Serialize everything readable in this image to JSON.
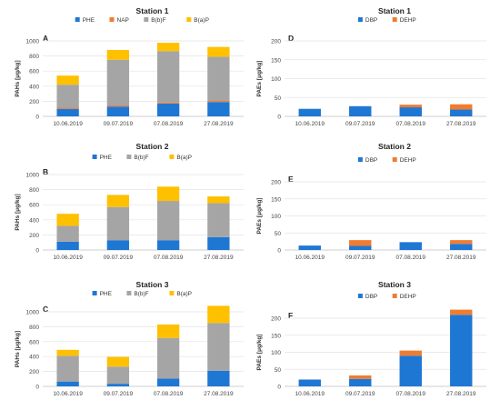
{
  "colors": {
    "PHE": "#1f77d4",
    "NAP": "#ef7d31",
    "BbF": "#a5a5a5",
    "BaP": "#ffc000",
    "DBP": "#1f77d4",
    "DEHP": "#ef7d31"
  },
  "chart_data": [
    {
      "type": "bar",
      "stacked": true,
      "panel": "A",
      "title": "Station 1",
      "ylabel": "PAHs [μg/kg]",
      "ylim": [
        0,
        1000
      ],
      "yticks": [
        0,
        200,
        400,
        600,
        800,
        1000
      ],
      "categories": [
        "10.06.2019",
        "09.07.2019",
        "07.08.2019",
        "27.08.2019"
      ],
      "legend": [
        "PHE",
        "NAP",
        "B(b)F",
        "B(a)P"
      ],
      "series": [
        {
          "name": "PHE",
          "key": "PHE",
          "values": [
            100,
            130,
            170,
            190
          ]
        },
        {
          "name": "NAP",
          "key": "NAP",
          "values": [
            15,
            15,
            15,
            15
          ]
        },
        {
          "name": "B(b)F",
          "key": "BbF",
          "values": [
            305,
            605,
            680,
            585
          ]
        },
        {
          "name": "B(a)P",
          "key": "BaP",
          "values": [
            120,
            130,
            110,
            130
          ]
        }
      ]
    },
    {
      "type": "bar",
      "stacked": true,
      "panel": "D",
      "title": "Station 1",
      "ylabel": "PAEs [μg/kg]",
      "ylim": [
        0,
        200
      ],
      "yticks": [
        0,
        50,
        100,
        150,
        200
      ],
      "categories": [
        "10.06.2019",
        "09.07.2019",
        "07.08.2019",
        "27.08.2019"
      ],
      "legend": [
        "DBP",
        "DEHP"
      ],
      "series": [
        {
          "name": "DBP",
          "key": "DBP",
          "values": [
            20,
            27,
            24,
            18
          ]
        },
        {
          "name": "DEHP",
          "key": "DEHP",
          "values": [
            0,
            0,
            7,
            14
          ]
        }
      ]
    },
    {
      "type": "bar",
      "stacked": true,
      "panel": "B",
      "title": "Station 2",
      "ylabel": "PAHs [μg/kg]",
      "ylim": [
        0,
        1000
      ],
      "yticks": [
        0,
        200,
        400,
        600,
        800,
        1000
      ],
      "categories": [
        "10.06.2019",
        "09.07.2019",
        "07.08.2019",
        "27.08.2019"
      ],
      "legend": [
        "PHE",
        "B(b)F",
        "B(a)P"
      ],
      "series": [
        {
          "name": "PHE",
          "key": "PHE",
          "values": [
            110,
            130,
            130,
            170
          ]
        },
        {
          "name": "B(b)F",
          "key": "BbF",
          "values": [
            210,
            440,
            520,
            450
          ]
        },
        {
          "name": "B(a)P",
          "key": "BaP",
          "values": [
            160,
            160,
            190,
            90
          ]
        }
      ]
    },
    {
      "type": "bar",
      "stacked": true,
      "panel": "E",
      "title": "Station 2",
      "ylabel": "PAEs [μg/kg]",
      "ylim": [
        0,
        200
      ],
      "yticks": [
        0,
        50,
        100,
        150,
        200
      ],
      "categories": [
        "10.06.2019",
        "09.07.2019",
        "07.08.2019",
        "27.08.2019"
      ],
      "legend": [
        "DBP",
        "DEHP"
      ],
      "series": [
        {
          "name": "DBP",
          "key": "DBP",
          "values": [
            13,
            12,
            23,
            18
          ]
        },
        {
          "name": "DEHP",
          "key": "DEHP",
          "values": [
            0,
            17,
            0,
            11
          ]
        }
      ]
    },
    {
      "type": "bar",
      "stacked": true,
      "panel": "C",
      "title": "Station 3",
      "ylabel": "PAHs [μg/kg]",
      "ylim": [
        0,
        1000
      ],
      "yticks": [
        0,
        200,
        400,
        600,
        800,
        1000
      ],
      "categories": [
        "10.06.2019",
        "09.07.2019",
        "07.08.2019",
        "27.08.2019"
      ],
      "legend": [
        "PHE",
        "B(b)F",
        "B(a)P"
      ],
      "series": [
        {
          "name": "PHE",
          "key": "PHE",
          "values": [
            65,
            35,
            105,
            210
          ]
        },
        {
          "name": "B(b)F",
          "key": "BbF",
          "values": [
            345,
            230,
            545,
            640
          ]
        },
        {
          "name": "B(a)P",
          "key": "BaP",
          "values": [
            80,
            130,
            180,
            230
          ]
        }
      ]
    },
    {
      "type": "bar",
      "stacked": true,
      "panel": "F",
      "title": "Station 3",
      "ylabel": "PAEs [μg/kg]",
      "ylim": [
        0,
        200
      ],
      "yticks": [
        0,
        50,
        100,
        150,
        200
      ],
      "categories": [
        "10.06.2019",
        "09.07.2019",
        "07.08.2019",
        "27.08.2019"
      ],
      "legend": [
        "DBP",
        "DEHP"
      ],
      "series": [
        {
          "name": "DBP",
          "key": "DBP",
          "values": [
            20,
            22,
            90,
            210
          ]
        },
        {
          "name": "DEHP",
          "key": "DEHP",
          "values": [
            0,
            10,
            15,
            15
          ]
        }
      ]
    }
  ]
}
